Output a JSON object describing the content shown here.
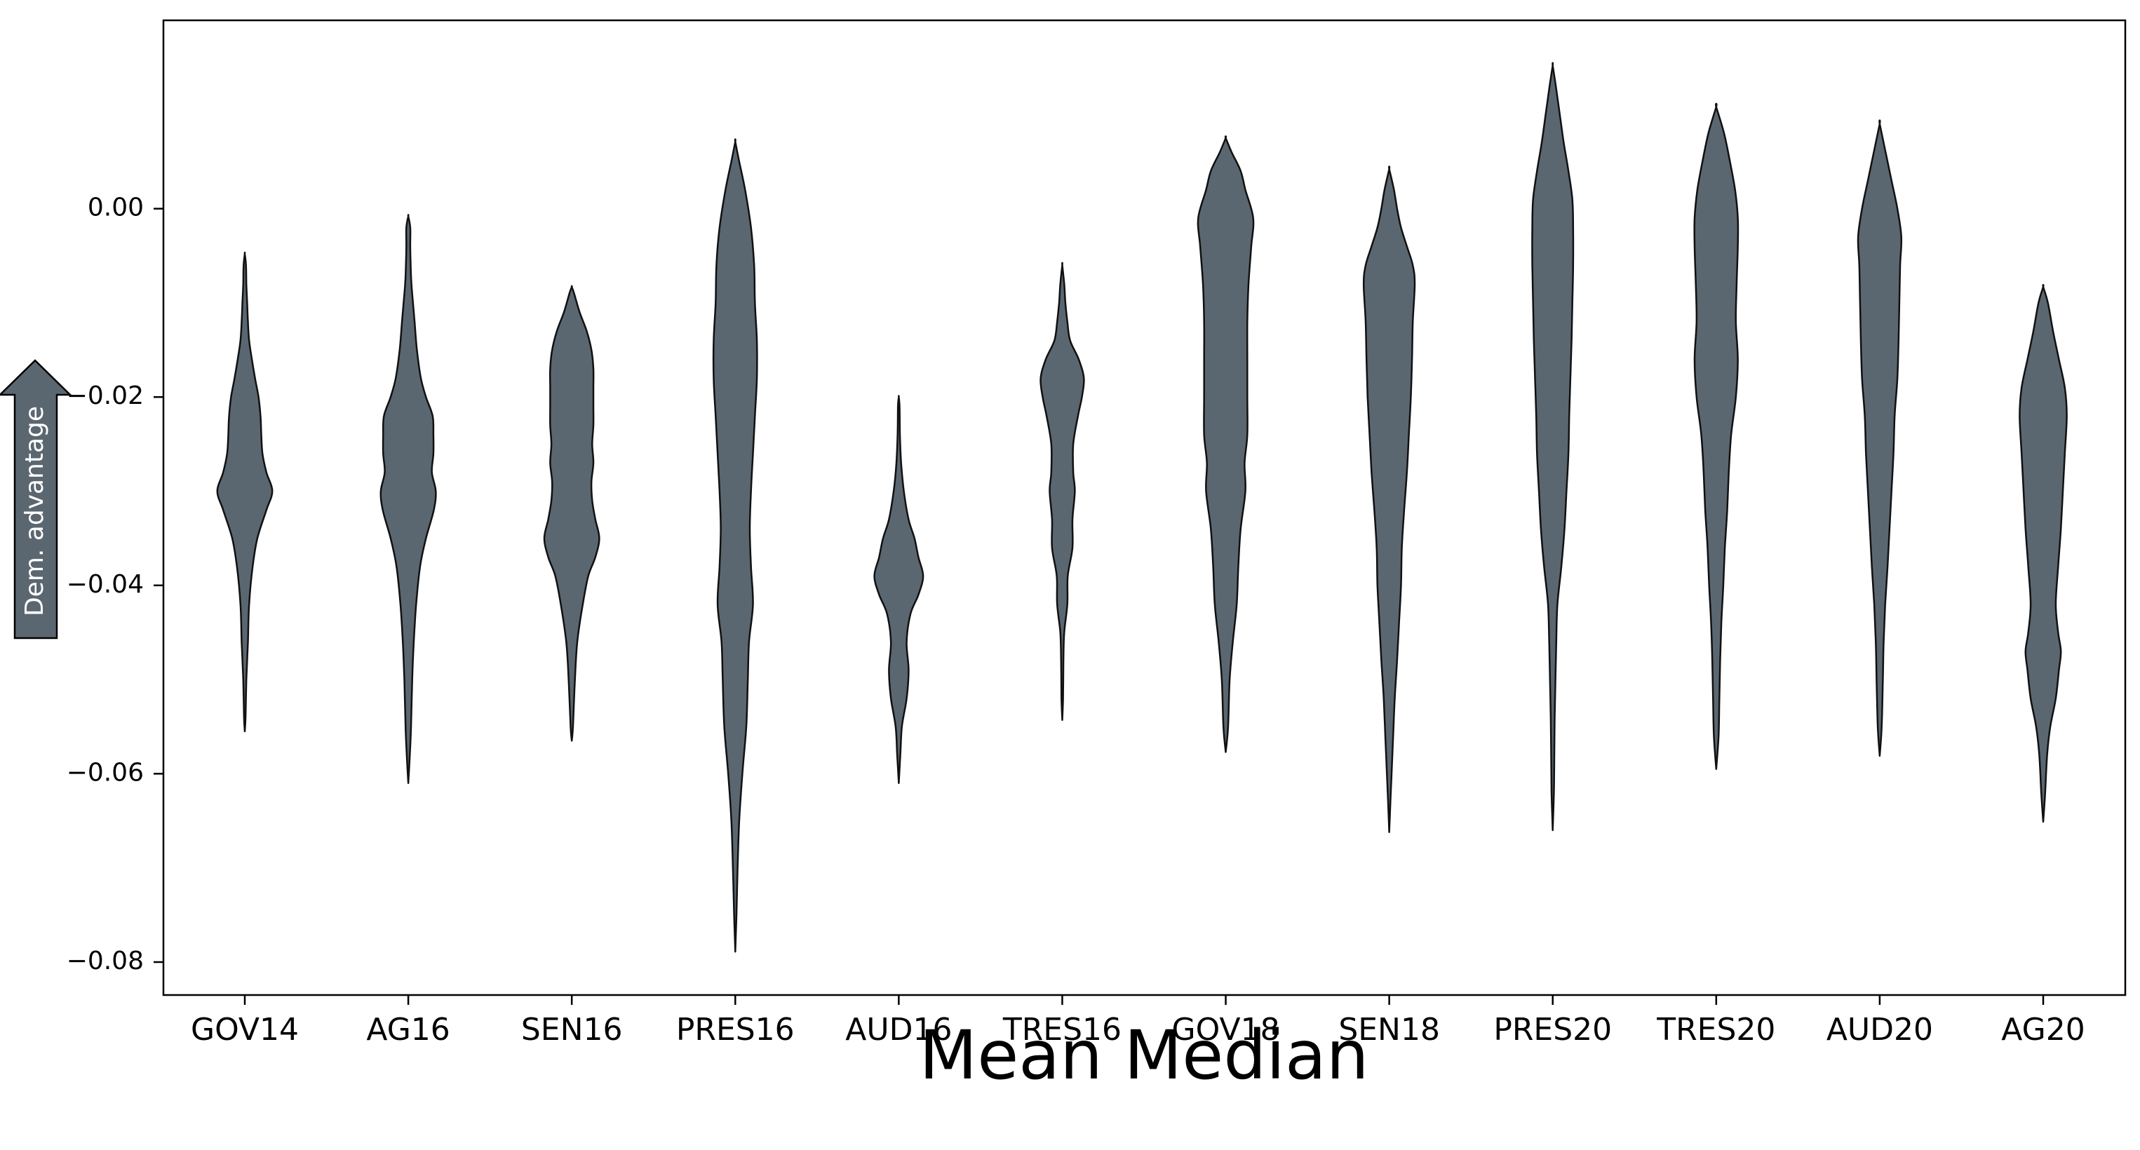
{
  "chart_data": {
    "type": "violin",
    "title": "",
    "xlabel": "Mean Median",
    "ylabel": "",
    "y_annotation": "Dem. advantage",
    "y_annotation_direction": "up",
    "ylim": [
      -0.0835,
      0.02
    ],
    "yticks": [
      0.0,
      -0.02,
      -0.04,
      -0.06,
      -0.08
    ],
    "ytick_labels": [
      "0.00",
      "−0.02",
      "−0.04",
      "−0.06",
      "−0.08"
    ],
    "grid": false,
    "fill_color": "#5b6770",
    "edge_color": "#111111",
    "categories": [
      "GOV14",
      "AG16",
      "SEN16",
      "PRES16",
      "AUD16",
      "TRES16",
      "GOV18",
      "SEN18",
      "PRES20",
      "TRES20",
      "AUD20",
      "AG20"
    ],
    "series": [
      {
        "category": "GOV14",
        "min": -0.0555,
        "max": -0.0048,
        "density": [
          [
            -0.0555,
            0.0
          ],
          [
            -0.054,
            0.02
          ],
          [
            -0.05,
            0.04
          ],
          [
            -0.046,
            0.08
          ],
          [
            -0.042,
            0.11
          ],
          [
            -0.038,
            0.2
          ],
          [
            -0.035,
            0.32
          ],
          [
            -0.032,
            0.55
          ],
          [
            -0.03,
            0.7
          ],
          [
            -0.028,
            0.55
          ],
          [
            -0.026,
            0.45
          ],
          [
            -0.024,
            0.42
          ],
          [
            -0.022,
            0.4
          ],
          [
            -0.02,
            0.35
          ],
          [
            -0.018,
            0.26
          ],
          [
            -0.016,
            0.18
          ],
          [
            -0.014,
            0.11
          ],
          [
            -0.012,
            0.08
          ],
          [
            -0.01,
            0.06
          ],
          [
            -0.008,
            0.04
          ],
          [
            -0.006,
            0.03
          ],
          [
            -0.0048,
            0.0
          ]
        ]
      },
      {
        "category": "AG16",
        "min": -0.061,
        "max": -0.0008,
        "density": [
          [
            -0.061,
            0.0
          ],
          [
            -0.058,
            0.04
          ],
          [
            -0.055,
            0.07
          ],
          [
            -0.05,
            0.1
          ],
          [
            -0.046,
            0.14
          ],
          [
            -0.042,
            0.2
          ],
          [
            -0.038,
            0.3
          ],
          [
            -0.035,
            0.45
          ],
          [
            -0.032,
            0.65
          ],
          [
            -0.03,
            0.7
          ],
          [
            -0.028,
            0.6
          ],
          [
            -0.026,
            0.64
          ],
          [
            -0.024,
            0.64
          ],
          [
            -0.022,
            0.62
          ],
          [
            -0.02,
            0.45
          ],
          [
            -0.018,
            0.32
          ],
          [
            -0.015,
            0.22
          ],
          [
            -0.012,
            0.16
          ],
          [
            -0.01,
            0.12
          ],
          [
            -0.008,
            0.08
          ],
          [
            -0.006,
            0.06
          ],
          [
            -0.004,
            0.05
          ],
          [
            -0.002,
            0.05
          ],
          [
            -0.0008,
            0.0
          ]
        ]
      },
      {
        "category": "SEN16",
        "min": -0.0565,
        "max": -0.0083,
        "density": [
          [
            -0.0565,
            0.0
          ],
          [
            -0.055,
            0.03
          ],
          [
            -0.05,
            0.08
          ],
          [
            -0.046,
            0.14
          ],
          [
            -0.042,
            0.28
          ],
          [
            -0.039,
            0.42
          ],
          [
            -0.037,
            0.6
          ],
          [
            -0.035,
            0.7
          ],
          [
            -0.033,
            0.6
          ],
          [
            -0.031,
            0.52
          ],
          [
            -0.029,
            0.5
          ],
          [
            -0.027,
            0.55
          ],
          [
            -0.025,
            0.52
          ],
          [
            -0.023,
            0.55
          ],
          [
            -0.021,
            0.55
          ],
          [
            -0.019,
            0.55
          ],
          [
            -0.017,
            0.55
          ],
          [
            -0.015,
            0.5
          ],
          [
            -0.013,
            0.38
          ],
          [
            -0.011,
            0.2
          ],
          [
            -0.009,
            0.06
          ],
          [
            -0.0083,
            0.0
          ]
        ]
      },
      {
        "category": "PRES16",
        "min": -0.0789,
        "max": 0.0071,
        "density": [
          [
            -0.0789,
            0.0
          ],
          [
            -0.075,
            0.03
          ],
          [
            -0.07,
            0.06
          ],
          [
            -0.065,
            0.1
          ],
          [
            -0.06,
            0.18
          ],
          [
            -0.055,
            0.28
          ],
          [
            -0.05,
            0.32
          ],
          [
            -0.046,
            0.35
          ],
          [
            -0.042,
            0.45
          ],
          [
            -0.038,
            0.4
          ],
          [
            -0.034,
            0.37
          ],
          [
            -0.03,
            0.4
          ],
          [
            -0.026,
            0.45
          ],
          [
            -0.022,
            0.5
          ],
          [
            -0.018,
            0.55
          ],
          [
            -0.014,
            0.55
          ],
          [
            -0.01,
            0.5
          ],
          [
            -0.006,
            0.48
          ],
          [
            -0.002,
            0.4
          ],
          [
            0.002,
            0.25
          ],
          [
            0.005,
            0.1
          ],
          [
            0.0071,
            0.0
          ]
        ]
      },
      {
        "category": "AUD16",
        "min": -0.061,
        "max": -0.02,
        "density": [
          [
            -0.061,
            0.0
          ],
          [
            -0.058,
            0.04
          ],
          [
            -0.055,
            0.08
          ],
          [
            -0.052,
            0.2
          ],
          [
            -0.049,
            0.25
          ],
          [
            -0.046,
            0.2
          ],
          [
            -0.043,
            0.3
          ],
          [
            -0.041,
            0.5
          ],
          [
            -0.039,
            0.62
          ],
          [
            -0.037,
            0.5
          ],
          [
            -0.035,
            0.4
          ],
          [
            -0.033,
            0.25
          ],
          [
            -0.03,
            0.13
          ],
          [
            -0.027,
            0.06
          ],
          [
            -0.024,
            0.03
          ],
          [
            -0.021,
            0.02
          ],
          [
            -0.02,
            0.0
          ]
        ]
      },
      {
        "category": "TRES16",
        "min": -0.0543,
        "max": -0.006,
        "density": [
          [
            -0.0543,
            0.0
          ],
          [
            -0.052,
            0.02
          ],
          [
            -0.048,
            0.03
          ],
          [
            -0.045,
            0.05
          ],
          [
            -0.042,
            0.13
          ],
          [
            -0.039,
            0.14
          ],
          [
            -0.036,
            0.26
          ],
          [
            -0.033,
            0.26
          ],
          [
            -0.03,
            0.32
          ],
          [
            -0.028,
            0.28
          ],
          [
            -0.025,
            0.28
          ],
          [
            -0.022,
            0.4
          ],
          [
            -0.02,
            0.5
          ],
          [
            -0.018,
            0.55
          ],
          [
            -0.016,
            0.42
          ],
          [
            -0.014,
            0.2
          ],
          [
            -0.012,
            0.13
          ],
          [
            -0.01,
            0.08
          ],
          [
            -0.008,
            0.05
          ],
          [
            -0.006,
            0.0
          ]
        ]
      },
      {
        "category": "GOV18",
        "min": -0.0577,
        "max": 0.0075,
        "density": [
          [
            -0.0577,
            0.0
          ],
          [
            -0.055,
            0.06
          ],
          [
            -0.05,
            0.1
          ],
          [
            -0.046,
            0.18
          ],
          [
            -0.042,
            0.28
          ],
          [
            -0.038,
            0.32
          ],
          [
            -0.034,
            0.38
          ],
          [
            -0.03,
            0.5
          ],
          [
            -0.027,
            0.48
          ],
          [
            -0.024,
            0.55
          ],
          [
            -0.02,
            0.55
          ],
          [
            -0.016,
            0.55
          ],
          [
            -0.012,
            0.55
          ],
          [
            -0.008,
            0.58
          ],
          [
            -0.004,
            0.65
          ],
          [
            -0.001,
            0.7
          ],
          [
            0.002,
            0.5
          ],
          [
            0.004,
            0.38
          ],
          [
            0.006,
            0.15
          ],
          [
            0.0075,
            0.0
          ]
        ]
      },
      {
        "category": "SEN18",
        "min": -0.0662,
        "max": 0.0042,
        "density": [
          [
            -0.0662,
            0.0
          ],
          [
            -0.063,
            0.03
          ],
          [
            -0.06,
            0.06
          ],
          [
            -0.056,
            0.1
          ],
          [
            -0.052,
            0.14
          ],
          [
            -0.048,
            0.2
          ],
          [
            -0.044,
            0.25
          ],
          [
            -0.04,
            0.3
          ],
          [
            -0.036,
            0.32
          ],
          [
            -0.032,
            0.38
          ],
          [
            -0.028,
            0.45
          ],
          [
            -0.024,
            0.5
          ],
          [
            -0.02,
            0.55
          ],
          [
            -0.016,
            0.58
          ],
          [
            -0.012,
            0.6
          ],
          [
            -0.008,
            0.65
          ],
          [
            -0.006,
            0.6
          ],
          [
            -0.004,
            0.45
          ],
          [
            -0.002,
            0.3
          ],
          [
            0.0,
            0.2
          ],
          [
            0.002,
            0.12
          ],
          [
            0.0042,
            0.0
          ]
        ]
      },
      {
        "category": "PRES20",
        "min": -0.066,
        "max": 0.0152,
        "density": [
          [
            -0.066,
            0.0
          ],
          [
            -0.062,
            0.03
          ],
          [
            -0.058,
            0.04
          ],
          [
            -0.054,
            0.05
          ],
          [
            -0.05,
            0.07
          ],
          [
            -0.046,
            0.09
          ],
          [
            -0.042,
            0.12
          ],
          [
            -0.038,
            0.22
          ],
          [
            -0.034,
            0.3
          ],
          [
            -0.03,
            0.35
          ],
          [
            -0.026,
            0.4
          ],
          [
            -0.022,
            0.42
          ],
          [
            -0.018,
            0.45
          ],
          [
            -0.014,
            0.48
          ],
          [
            -0.01,
            0.5
          ],
          [
            -0.006,
            0.52
          ],
          [
            -0.002,
            0.52
          ],
          [
            0.001,
            0.5
          ],
          [
            0.004,
            0.4
          ],
          [
            0.007,
            0.28
          ],
          [
            0.01,
            0.18
          ],
          [
            0.013,
            0.08
          ],
          [
            0.0152,
            0.0
          ]
        ]
      },
      {
        "category": "TRES20",
        "min": -0.0595,
        "max": 0.0108,
        "density": [
          [
            -0.0595,
            0.0
          ],
          [
            -0.056,
            0.06
          ],
          [
            -0.052,
            0.08
          ],
          [
            -0.048,
            0.1
          ],
          [
            -0.044,
            0.13
          ],
          [
            -0.04,
            0.18
          ],
          [
            -0.036,
            0.22
          ],
          [
            -0.032,
            0.28
          ],
          [
            -0.028,
            0.32
          ],
          [
            -0.024,
            0.38
          ],
          [
            -0.02,
            0.5
          ],
          [
            -0.016,
            0.55
          ],
          [
            -0.012,
            0.5
          ],
          [
            -0.008,
            0.52
          ],
          [
            -0.004,
            0.55
          ],
          [
            -0.001,
            0.55
          ],
          [
            0.002,
            0.48
          ],
          [
            0.005,
            0.35
          ],
          [
            0.008,
            0.2
          ],
          [
            0.0108,
            0.0
          ]
        ]
      },
      {
        "category": "AUD20",
        "min": -0.0581,
        "max": 0.009,
        "density": [
          [
            -0.0581,
            0.0
          ],
          [
            -0.055,
            0.05
          ],
          [
            -0.05,
            0.08
          ],
          [
            -0.046,
            0.1
          ],
          [
            -0.042,
            0.14
          ],
          [
            -0.038,
            0.2
          ],
          [
            -0.034,
            0.25
          ],
          [
            -0.03,
            0.3
          ],
          [
            -0.026,
            0.35
          ],
          [
            -0.022,
            0.38
          ],
          [
            -0.018,
            0.45
          ],
          [
            -0.014,
            0.48
          ],
          [
            -0.01,
            0.5
          ],
          [
            -0.006,
            0.52
          ],
          [
            -0.003,
            0.55
          ],
          [
            0.0,
            0.45
          ],
          [
            0.003,
            0.3
          ],
          [
            0.006,
            0.15
          ],
          [
            0.009,
            0.0
          ]
        ]
      },
      {
        "category": "AG20",
        "min": -0.0651,
        "max": -0.0083,
        "density": [
          [
            -0.0651,
            0.0
          ],
          [
            -0.062,
            0.05
          ],
          [
            -0.058,
            0.1
          ],
          [
            -0.055,
            0.18
          ],
          [
            -0.052,
            0.32
          ],
          [
            -0.049,
            0.4
          ],
          [
            -0.047,
            0.45
          ],
          [
            -0.045,
            0.38
          ],
          [
            -0.042,
            0.32
          ],
          [
            -0.038,
            0.38
          ],
          [
            -0.034,
            0.45
          ],
          [
            -0.03,
            0.5
          ],
          [
            -0.026,
            0.55
          ],
          [
            -0.022,
            0.6
          ],
          [
            -0.019,
            0.55
          ],
          [
            -0.016,
            0.4
          ],
          [
            -0.013,
            0.25
          ],
          [
            -0.01,
            0.12
          ],
          [
            -0.0083,
            0.0
          ]
        ]
      }
    ]
  }
}
